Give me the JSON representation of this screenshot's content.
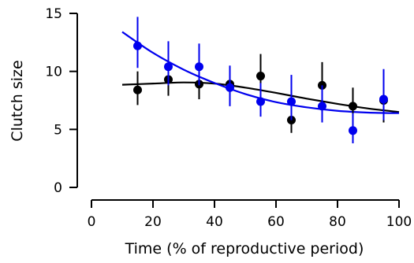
{
  "chart_data": {
    "type": "scatter",
    "xlabel": "Time (% of reproductive period)",
    "ylabel": "Clutch size",
    "xlim": [
      0,
      100
    ],
    "ylim": [
      0,
      15
    ],
    "xticks": [
      0,
      20,
      40,
      60,
      80,
      100
    ],
    "yticks": [
      0,
      5,
      10,
      15
    ],
    "grid": false,
    "series": [
      {
        "color": "#000000",
        "points": [
          {
            "x": 15,
            "y": 8.4,
            "lo": 7.1,
            "hi": 10.0
          },
          {
            "x": 25,
            "y": 9.3,
            "lo": 7.9,
            "hi": 10.9
          },
          {
            "x": 35,
            "y": 8.9,
            "lo": 7.6,
            "hi": 10.3
          },
          {
            "x": 45,
            "y": 8.9,
            "lo": 7.6,
            "hi": 10.3
          },
          {
            "x": 55,
            "y": 9.6,
            "lo": 8.0,
            "hi": 11.5
          },
          {
            "x": 65,
            "y": 5.8,
            "lo": 4.7,
            "hi": 7.0
          },
          {
            "x": 75,
            "y": 8.8,
            "lo": 7.1,
            "hi": 10.8
          },
          {
            "x": 85,
            "y": 7.0,
            "lo": 5.6,
            "hi": 8.6
          },
          {
            "x": 95,
            "y": 7.5,
            "lo": 5.6,
            "hi": 9.7
          }
        ],
        "fit": [
          [
            10,
            8.85
          ],
          [
            20,
            8.95
          ],
          [
            30,
            9.05
          ],
          [
            40,
            8.95
          ],
          [
            50,
            8.6
          ],
          [
            60,
            8.15
          ],
          [
            70,
            7.65
          ],
          [
            80,
            7.2
          ],
          [
            90,
            6.8
          ],
          [
            100,
            6.5
          ]
        ]
      },
      {
        "color": "#0000ee",
        "points": [
          {
            "x": 15,
            "y": 12.2,
            "lo": 10.3,
            "hi": 14.7
          },
          {
            "x": 25,
            "y": 10.4,
            "lo": 8.8,
            "hi": 12.6
          },
          {
            "x": 35,
            "y": 10.4,
            "lo": 8.8,
            "hi": 12.4
          },
          {
            "x": 45,
            "y": 8.6,
            "lo": 7.0,
            "hi": 10.5
          },
          {
            "x": 55,
            "y": 7.4,
            "lo": 6.1,
            "hi": 9.0
          },
          {
            "x": 65,
            "y": 7.4,
            "lo": 5.8,
            "hi": 9.7
          },
          {
            "x": 75,
            "y": 7.0,
            "lo": 5.6,
            "hi": 8.8
          },
          {
            "x": 85,
            "y": 4.9,
            "lo": 3.8,
            "hi": 6.4
          },
          {
            "x": 95,
            "y": 7.6,
            "lo": 5.8,
            "hi": 10.2
          }
        ],
        "fit": [
          [
            10,
            13.4
          ],
          [
            20,
            11.6
          ],
          [
            30,
            10.15
          ],
          [
            40,
            9.0
          ],
          [
            50,
            8.05
          ],
          [
            60,
            7.35
          ],
          [
            70,
            6.9
          ],
          [
            80,
            6.6
          ],
          [
            90,
            6.45
          ],
          [
            100,
            6.4
          ]
        ]
      }
    ]
  }
}
